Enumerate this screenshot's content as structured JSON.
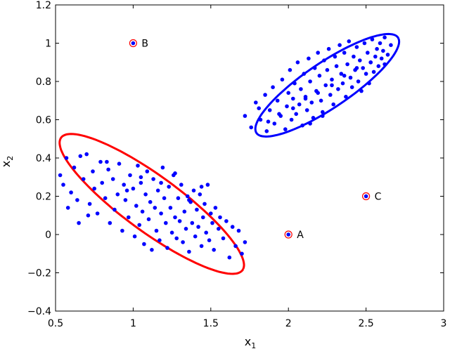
{
  "chart_data": {
    "type": "scatter",
    "xlim": [
      0.5,
      3
    ],
    "ylim": [
      -0.4,
      1.2
    ],
    "x_ticks": [
      "0.5",
      "1",
      "1.5",
      "2",
      "2.5",
      "3"
    ],
    "y_ticks": [
      "−0.4",
      "−0.2",
      "0",
      "0.2",
      "0.4",
      "0.6",
      "0.8",
      "1",
      "1.2"
    ],
    "x_tick_values": [
      0.5,
      1,
      1.5,
      2,
      2.5,
      3
    ],
    "y_tick_values": [
      -0.4,
      -0.2,
      0,
      0.2,
      0.4,
      0.6,
      0.8,
      1,
      1.2
    ],
    "xlabel": "x",
    "xlabel_sub": "1",
    "ylabel": "x",
    "ylabel_sub": "2",
    "grid": false,
    "colors": {
      "points": "#0000ff",
      "lower_ellipse": "#ff0000",
      "upper_ellipse": "#0000ff",
      "outlier_ring": "#ff0000"
    },
    "ellipses": [
      {
        "name": "",
        "color": "#ff0000",
        "center": [
          1.12,
          0.16
        ],
        "semi_axis_major": 0.68,
        "semi_axis_minor": 0.155,
        "angle_deg": -30
      },
      {
        "name": "",
        "color": "#0000ff",
        "center": [
          2.25,
          0.78
        ],
        "semi_axis_major": 0.52,
        "semi_axis_minor": 0.125,
        "angle_deg": 28
      }
    ],
    "outliers": [
      {
        "label": "A",
        "x": 2.0,
        "y": 0.0
      },
      {
        "label": "B",
        "x": 1.0,
        "y": 1.0
      },
      {
        "label": "C",
        "x": 2.5,
        "y": 0.2
      }
    ],
    "series": [
      {
        "name": "",
        "x": [
          0.53,
          0.55,
          0.57,
          0.6,
          0.62,
          0.64,
          0.66,
          0.68,
          0.7,
          0.72,
          0.74,
          0.75,
          0.77,
          0.79,
          0.8,
          0.82,
          0.84,
          0.85,
          0.87,
          0.88,
          0.9,
          0.91,
          0.93,
          0.94,
          0.95,
          0.97,
          0.98,
          1.0,
          1.01,
          1.02,
          1.03,
          1.04,
          1.05,
          1.06,
          1.07,
          1.08,
          1.09,
          1.1,
          1.11,
          1.12,
          1.13,
          1.14,
          1.15,
          1.16,
          1.17,
          1.18,
          1.19,
          1.2,
          1.21,
          1.22,
          1.23,
          1.24,
          1.25,
          1.26,
          1.27,
          1.28,
          1.29,
          1.3,
          1.31,
          1.32,
          1.33,
          1.34,
          1.35,
          1.36,
          1.37,
          1.38,
          1.39,
          1.4,
          1.41,
          1.42,
          1.43,
          1.44,
          1.45,
          1.46,
          1.47,
          1.48,
          1.49,
          1.5,
          1.51,
          1.52,
          1.53,
          1.55,
          1.56,
          1.58,
          1.6,
          1.62,
          1.64,
          1.66,
          1.68,
          1.7,
          1.72,
          0.96,
          1.05,
          1.18,
          1.27,
          1.36,
          1.44,
          0.83,
          0.71,
          0.65,
          0.58
        ],
        "y": [
          0.31,
          0.26,
          0.4,
          0.22,
          0.35,
          0.18,
          0.41,
          0.29,
          0.42,
          0.16,
          0.33,
          0.24,
          0.11,
          0.38,
          0.27,
          0.19,
          0.34,
          0.06,
          0.29,
          0.13,
          0.21,
          0.37,
          0.02,
          0.26,
          0.18,
          0.09,
          0.31,
          0.24,
          -0.01,
          0.15,
          0.36,
          0.05,
          0.27,
          0.12,
          -0.05,
          0.21,
          0.33,
          0.08,
          0.17,
          -0.08,
          0.29,
          0.14,
          0.02,
          0.23,
          -0.03,
          0.11,
          0.35,
          0.19,
          0.06,
          -0.07,
          0.25,
          0.14,
          0.01,
          0.31,
          0.09,
          -0.02,
          0.19,
          0.07,
          0.26,
          -0.04,
          0.12,
          0.03,
          0.2,
          -0.09,
          0.17,
          0.06,
          0.23,
          -0.01,
          0.13,
          0.04,
          0.21,
          -0.06,
          0.09,
          0.16,
          0.01,
          0.26,
          -0.03,
          0.11,
          0.06,
          -0.08,
          0.14,
          0.03,
          0.09,
          -0.02,
          0.07,
          -0.12,
          0.04,
          -0.06,
          0.02,
          -0.1,
          -0.04,
          0.23,
          0.3,
          0.27,
          0.32,
          0.18,
          0.25,
          0.38,
          0.1,
          0.06,
          0.14
        ]
      },
      {
        "name": "",
        "x": [
          1.72,
          1.76,
          1.79,
          1.82,
          1.85,
          1.86,
          1.88,
          1.9,
          1.91,
          1.93,
          1.95,
          1.96,
          1.98,
          1.99,
          2.0,
          2.01,
          2.02,
          2.03,
          2.04,
          2.05,
          2.06,
          2.07,
          2.08,
          2.09,
          2.1,
          2.11,
          2.12,
          2.13,
          2.14,
          2.15,
          2.16,
          2.17,
          2.18,
          2.19,
          2.2,
          2.21,
          2.22,
          2.23,
          2.24,
          2.25,
          2.26,
          2.27,
          2.28,
          2.29,
          2.3,
          2.31,
          2.32,
          2.33,
          2.34,
          2.35,
          2.36,
          2.37,
          2.38,
          2.39,
          2.4,
          2.41,
          2.42,
          2.43,
          2.44,
          2.45,
          2.46,
          2.47,
          2.48,
          2.49,
          2.5,
          2.51,
          2.52,
          2.53,
          2.54,
          2.55,
          2.56,
          2.57,
          2.58,
          2.59,
          2.6,
          2.61,
          2.62,
          2.64,
          2.66,
          1.87,
          1.94,
          2.03,
          2.11,
          2.19,
          2.28,
          2.36,
          2.44,
          2.53,
          1.81,
          2.62,
          2.14,
          2.22
        ],
        "y": [
          0.62,
          0.56,
          0.69,
          0.6,
          0.73,
          0.54,
          0.65,
          0.77,
          0.58,
          0.7,
          0.62,
          0.81,
          0.55,
          0.67,
          0.74,
          0.86,
          0.6,
          0.71,
          0.79,
          0.63,
          0.9,
          0.68,
          0.76,
          0.57,
          0.84,
          0.72,
          0.65,
          0.92,
          0.8,
          0.69,
          0.61,
          0.87,
          0.75,
          0.95,
          0.83,
          0.7,
          0.64,
          0.91,
          0.78,
          0.86,
          0.97,
          0.73,
          0.81,
          0.68,
          0.93,
          0.88,
          0.76,
          0.99,
          0.84,
          0.79,
          0.95,
          0.72,
          0.89,
          1.01,
          0.82,
          0.77,
          0.93,
          0.86,
          0.98,
          0.8,
          0.91,
          0.75,
          0.87,
          1.0,
          0.84,
          0.95,
          0.79,
          0.9,
          1.02,
          0.85,
          0.93,
          0.97,
          0.88,
          1.0,
          0.92,
          0.96,
          1.03,
          0.94,
          0.99,
          0.59,
          0.63,
          0.66,
          0.71,
          0.74,
          0.78,
          0.83,
          0.87,
          0.9,
          0.66,
          0.89,
          0.58,
          0.62
        ]
      }
    ]
  }
}
